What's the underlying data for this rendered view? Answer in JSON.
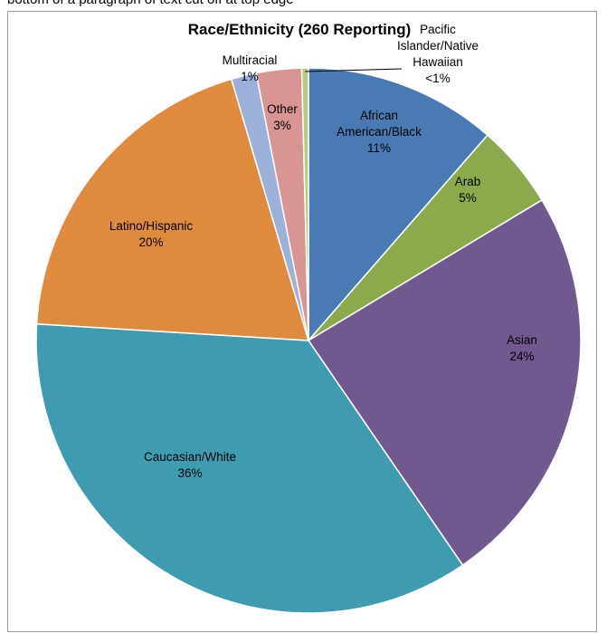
{
  "page": {
    "cut_off_text": "bottom of a paragraph of text cut off at top edge"
  },
  "colors": {
    "African American/Black": "#4a7ab4",
    "Arab": "#8aaa4c",
    "Asian": "#71598f",
    "Caucasian/White": "#3f9cb0",
    "Latino/Hispanic": "#de8b3e",
    "Multiracial": "#9bb1d9",
    "Other": "#d99594",
    "Pacific Islander/Native Hawaiian": "#b7cd7a"
  },
  "chart_data": {
    "type": "pie",
    "title": "Race/Ethnicity (260 Reporting)",
    "start": "12 o'clock, clockwise",
    "slices": [
      {
        "label": "African American/Black",
        "label_lines": [
          "African",
          "American/Black",
          "11%"
        ],
        "value": 11.5
      },
      {
        "label": "Arab",
        "label_lines": [
          "Arab",
          "5%"
        ],
        "value": 5.0
      },
      {
        "label": "Asian",
        "label_lines": [
          "Asian",
          "24%"
        ],
        "value": 24.2
      },
      {
        "label": "Caucasian/White",
        "label_lines": [
          "Caucasian/White",
          "36%"
        ],
        "value": 35.8
      },
      {
        "label": "Latino/Hispanic",
        "label_lines": [
          "Latino/Hispanic",
          "20%"
        ],
        "value": 19.6
      },
      {
        "label": "Multiracial",
        "label_lines": [
          "Multiracial",
          "1%"
        ],
        "value": 1.5
      },
      {
        "label": "Other",
        "label_lines": [
          "Other",
          "3%"
        ],
        "value": 2.7
      },
      {
        "label": "Pacific Islander/Native Hawaiian",
        "label_lines": [
          "Pacific",
          "Islander/Native",
          "Hawaiian",
          "<1%"
        ],
        "value": 0.4
      }
    ]
  }
}
